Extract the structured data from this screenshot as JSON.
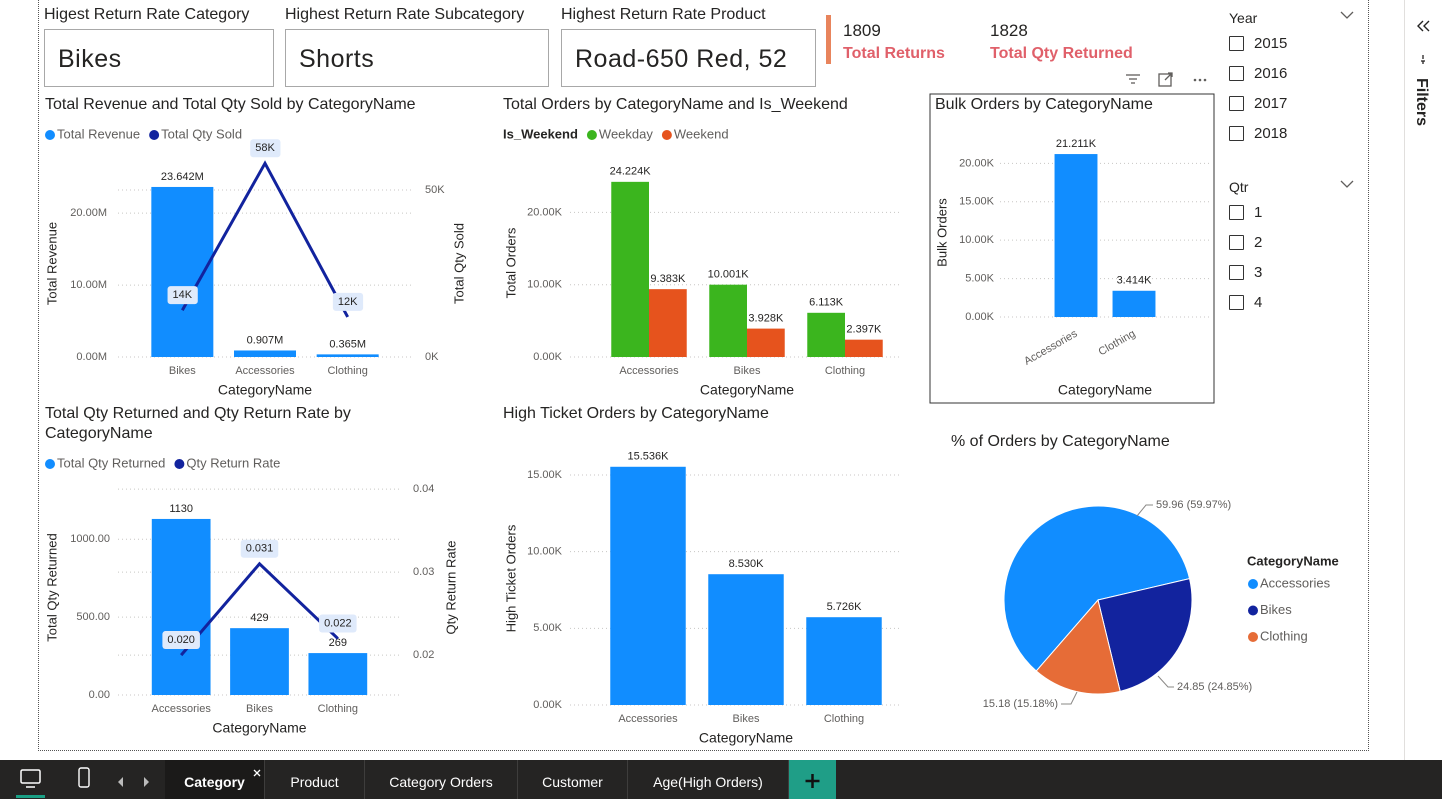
{
  "cards": [
    {
      "title": "Higest Return Rate Category",
      "value": "Bikes"
    },
    {
      "title": "Highest Return Rate Subcategory",
      "value": "Shorts"
    },
    {
      "title": "Highest Return Rate Product",
      "value": "Road-650 Red, 52"
    }
  ],
  "kpis": [
    {
      "value": 1809,
      "label": "Total Returns"
    },
    {
      "value": 1828,
      "label": "Total Qty Returned"
    }
  ],
  "slicers": [
    {
      "title": "Year",
      "items": [
        "2015",
        "2016",
        "2017",
        "2018"
      ]
    },
    {
      "title": "Qtr",
      "items": [
        "1",
        "2",
        "3",
        "4"
      ]
    }
  ],
  "filters_pane": {
    "title": "Filters"
  },
  "tabs": [
    "Category",
    "Product",
    "Category Orders",
    "Customer",
    "Age(High Orders)"
  ],
  "active_tab": 0,
  "chart_data": [
    {
      "type": "combo",
      "title": "Total Revenue and Total Qty Sold by CategoryName",
      "categories": [
        "Bikes",
        "Accessories",
        "Clothing"
      ],
      "series": [
        {
          "name": "Total Revenue",
          "type": "bar",
          "color": "#118dff",
          "values": [
            23642000,
            907000,
            365000
          ],
          "value_labels": [
            "23.642M",
            "0.907M",
            "0.365M"
          ]
        },
        {
          "name": "Total Qty Sold",
          "type": "line",
          "axis": "y2",
          "color": "#12239e",
          "values": [
            14000,
            58000,
            12000
          ],
          "value_labels": [
            "14K",
            "58K",
            "12K"
          ]
        }
      ],
      "ylim": [
        0,
        26000000
      ],
      "yticks": [
        {
          "value": 0,
          "label": "0.00M"
        },
        {
          "value": 10000000,
          "label": "10.00M"
        },
        {
          "value": 20000000,
          "label": "20.00M"
        }
      ],
      "y2lim": [
        0,
        56000
      ],
      "y2ticks": [
        {
          "value": 0,
          "label": "0K"
        },
        {
          "value": 50000,
          "label": "50K"
        }
      ],
      "xlabel": "CategoryName",
      "ylabel": "Total Revenue",
      "y2label": "Total Qty Sold",
      "legend": "top-left",
      "grid": true
    },
    {
      "type": "bar",
      "title": "Total Orders by CategoryName and Is_Weekend",
      "legend_title": "Is_Weekend",
      "categories": [
        "Accessories",
        "Bikes",
        "Clothing"
      ],
      "series": [
        {
          "name": "Weekday",
          "color": "#3bb51e",
          "values": [
            24224,
            10001,
            6113
          ],
          "value_labels": [
            "24.224K",
            "10.001K",
            "6.113K"
          ]
        },
        {
          "name": "Weekend",
          "color": "#e6531d",
          "values": [
            9383,
            3928,
            2397
          ],
          "value_labels": [
            "9.383K",
            "3.928K",
            "2.397K"
          ]
        }
      ],
      "ylim": [
        0,
        26000
      ],
      "yticks": [
        {
          "value": 0,
          "label": "0.00K"
        },
        {
          "value": 10000,
          "label": "10.00K"
        },
        {
          "value": 20000,
          "label": "20.00K"
        }
      ],
      "xlabel": "CategoryName",
      "ylabel": "Total Orders",
      "legend": "top-left",
      "grid": true
    },
    {
      "type": "bar",
      "title": "Bulk Orders by CategoryName",
      "categories": [
        "Accessories",
        "Clothing"
      ],
      "values": [
        21211,
        3414
      ],
      "value_labels": [
        "21.211K",
        "3.414K"
      ],
      "color": "#118dff",
      "ylim": [
        0,
        22000
      ],
      "yticks": [
        {
          "value": 0,
          "label": "0.00K"
        },
        {
          "value": 5000,
          "label": "5.00K"
        },
        {
          "value": 10000,
          "label": "10.00K"
        },
        {
          "value": 15000,
          "label": "15.00K"
        },
        {
          "value": 20000,
          "label": "20.00K"
        }
      ],
      "xlabel": "CategoryName",
      "ylabel": "Bulk Orders",
      "grid": true
    },
    {
      "type": "combo",
      "title": "Total Qty Returned and Qty Return Rate by CategoryName",
      "categories": [
        "Accessories",
        "Bikes",
        "Clothing"
      ],
      "series": [
        {
          "name": "Total Qty Returned",
          "type": "bar",
          "color": "#118dff",
          "values": [
            1130,
            429,
            269
          ]
        },
        {
          "name": "Qty Return Rate",
          "type": "line",
          "axis": "y2",
          "color": "#12239e",
          "values": [
            0.02,
            0.031,
            0.022
          ],
          "value_labels": [
            "0.020",
            "0.031",
            "0.022"
          ]
        }
      ],
      "ylim": [
        0,
        1380
      ],
      "yticks": [
        {
          "value": 0,
          "label": "0.00"
        },
        {
          "value": 500,
          "label": "500.00"
        },
        {
          "value": 1000,
          "label": "1000.00"
        }
      ],
      "y2lim": [
        0.0152,
        0.0411
      ],
      "y2ticks": [
        0.02,
        0.03,
        0.04
      ],
      "xlabel": "CategoryName",
      "ylabel": "Total Qty Returned",
      "y2label": "Qty Return Rate",
      "legend": "top-left",
      "grid": true
    },
    {
      "type": "bar",
      "title": "High Ticket Orders by CategoryName",
      "categories": [
        "Accessories",
        "Bikes",
        "Clothing"
      ],
      "values": [
        15536,
        8530,
        5726
      ],
      "value_labels": [
        "15.536K",
        "8.530K",
        "5.726K"
      ],
      "color": "#118dff",
      "ylim": [
        0,
        16500
      ],
      "yticks": [
        {
          "value": 0,
          "label": "0.00K"
        },
        {
          "value": 5000,
          "label": "5.00K"
        },
        {
          "value": 10000,
          "label": "10.00K"
        },
        {
          "value": 15000,
          "label": "15.00K"
        }
      ],
      "xlabel": "CategoryName",
      "ylabel": "High Ticket Orders",
      "grid": true
    },
    {
      "type": "pie",
      "title": "% of Orders by CategoryName",
      "legend_title": "CategoryName",
      "categories": [
        "Accessories",
        "Bikes",
        "Clothing"
      ],
      "values": [
        59.96,
        24.85,
        15.18
      ],
      "value_labels": [
        "59.96 (59.97%)",
        "24.85 (24.85%)",
        "15.18 (15.18%)"
      ],
      "colors": [
        "#118dff",
        "#12239e",
        "#e66c37"
      ],
      "legend": "right"
    }
  ]
}
